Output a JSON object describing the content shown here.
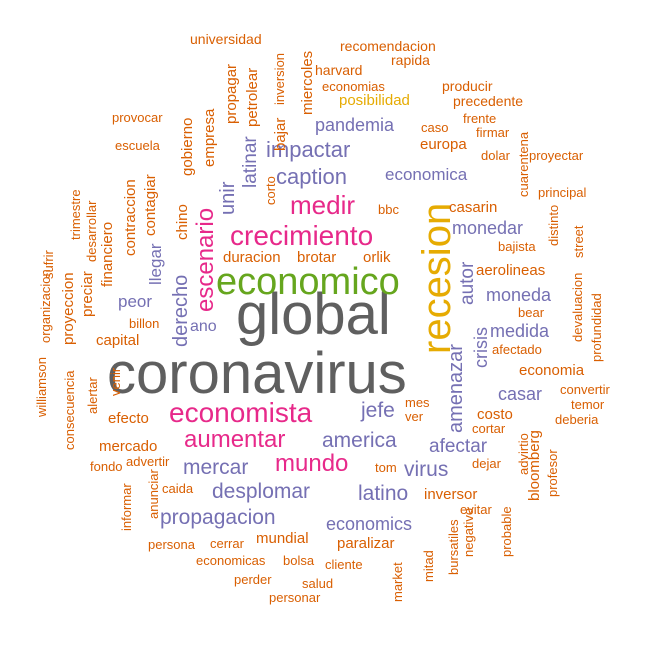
{
  "colors": {
    "gray": "#5f5f5f",
    "orange": "#d95f02",
    "purple": "#7570b3",
    "pink": "#e7298a",
    "green": "#66a61e",
    "gold": "#e6ab02"
  },
  "words": [
    "coronavirus",
    "global",
    "recesion",
    "economico",
    "economista",
    "crecimiento",
    "medir",
    "aumentar",
    "mundo",
    "escenario",
    "impactar",
    "caption",
    "pandemia",
    "propagacion",
    "desplomar",
    "america",
    "mercar",
    "latino",
    "virus",
    "jefe",
    "amenazar",
    "afectar",
    "economica",
    "monedar",
    "moneda",
    "medida",
    "autor",
    "crisis",
    "casar",
    "economics",
    "unir",
    "latinar",
    "derecho",
    "llegar",
    "peor",
    "ano",
    "universidad",
    "recomendacion",
    "rapida",
    "harvard",
    "economias",
    "producir",
    "precedente",
    "frente",
    "caso",
    "firmar",
    "dolar",
    "proyectar",
    "provocar",
    "escuela",
    "gobierno",
    "empresa",
    "propagar",
    "petrolear",
    "bajar",
    "inversion",
    "miercoles",
    "corto",
    "posibilidad",
    "europa",
    "cuarentena",
    "principal",
    "bbc",
    "casarin",
    "distinto",
    "bajista",
    "street",
    "devaluacion",
    "profundidad",
    "aerolineas",
    "bear",
    "afectado",
    "economia",
    "convertir",
    "temor",
    "deberia",
    "cortar",
    "costo",
    "mes",
    "ver",
    "dejar",
    "advirtio",
    "bloomberg",
    "profesor",
    "inversor",
    "evitar",
    "bursatiles",
    "negativo",
    "probable",
    "tom",
    "mitad",
    "market",
    "cliente",
    "paralizar",
    "mundial",
    "salud",
    "personar",
    "perder",
    "economicas",
    "bolsa",
    "cerrar",
    "persona",
    "anunciar",
    "informar",
    "fondo",
    "caida",
    "advertir",
    "mercado",
    "efecto",
    "venir",
    "alertar",
    "consecuencia",
    "williamson",
    "capital",
    "billon",
    "proyeccion",
    "organizacion",
    "preciar",
    "financiero",
    "sufrir",
    "desarrollar",
    "trimestre",
    "contraccion",
    "contagiar",
    "chino",
    "duracion",
    "brotar",
    "orlik"
  ]
}
